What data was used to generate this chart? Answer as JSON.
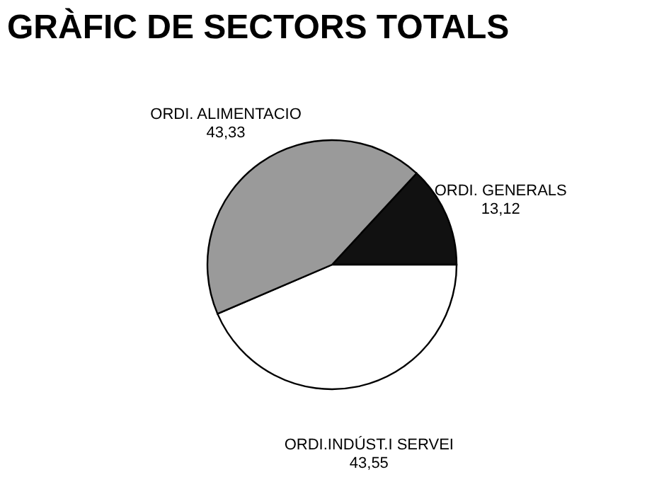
{
  "chart_data": {
    "type": "pie",
    "title": "GRÀFIC DE SECTORS TOTALS",
    "categories": [
      "ORDI. GENERALS",
      "ORDI.INDÚST.I SERVEI",
      "ORDI. ALIMENTACIO"
    ],
    "values": [
      13.12,
      43.55,
      43.33
    ],
    "value_labels": [
      "13,12",
      "43,55",
      "43,33"
    ],
    "colors": [
      "#111111",
      "#ffffff",
      "#9a9a9a"
    ],
    "legend": false
  }
}
